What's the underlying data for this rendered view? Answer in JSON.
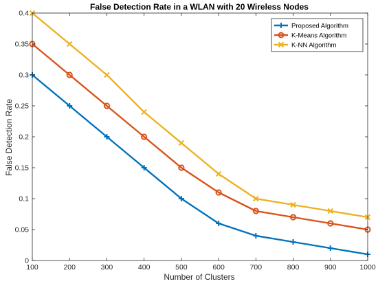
{
  "chart_data": {
    "type": "line",
    "title": "False Detection Rate in a WLAN with 20 Wireless Nodes",
    "xlabel": "Number of Clusters",
    "ylabel": "False Detection Rate",
    "x": [
      100,
      200,
      300,
      400,
      500,
      600,
      700,
      800,
      900,
      1000
    ],
    "xlim": [
      100,
      1000
    ],
    "ylim": [
      0,
      0.4
    ],
    "xticks": [
      "100",
      "200",
      "300",
      "400",
      "500",
      "600",
      "700",
      "800",
      "900",
      "1000"
    ],
    "yticks": [
      "0",
      "0.05",
      "0.1",
      "0.15",
      "0.2",
      "0.25",
      "0.3",
      "0.35",
      "0.4"
    ],
    "grid": false,
    "legend_position": "top-right",
    "series": [
      {
        "name": "Proposed Algorithm",
        "color": "#0072BD",
        "marker": "plus",
        "values": [
          0.3,
          0.25,
          0.2,
          0.15,
          0.1,
          0.06,
          0.04,
          0.03,
          0.02,
          0.01
        ]
      },
      {
        "name": "K-Means Algorithm",
        "color": "#D95319",
        "marker": "circle",
        "values": [
          0.35,
          0.3,
          0.25,
          0.2,
          0.15,
          0.11,
          0.08,
          0.07,
          0.06,
          0.05
        ]
      },
      {
        "name": "K-NN Algorithm",
        "color": "#EDB120",
        "marker": "cross",
        "values": [
          0.4,
          0.35,
          0.3,
          0.24,
          0.19,
          0.14,
          0.1,
          0.09,
          0.08,
          0.07
        ]
      }
    ]
  }
}
